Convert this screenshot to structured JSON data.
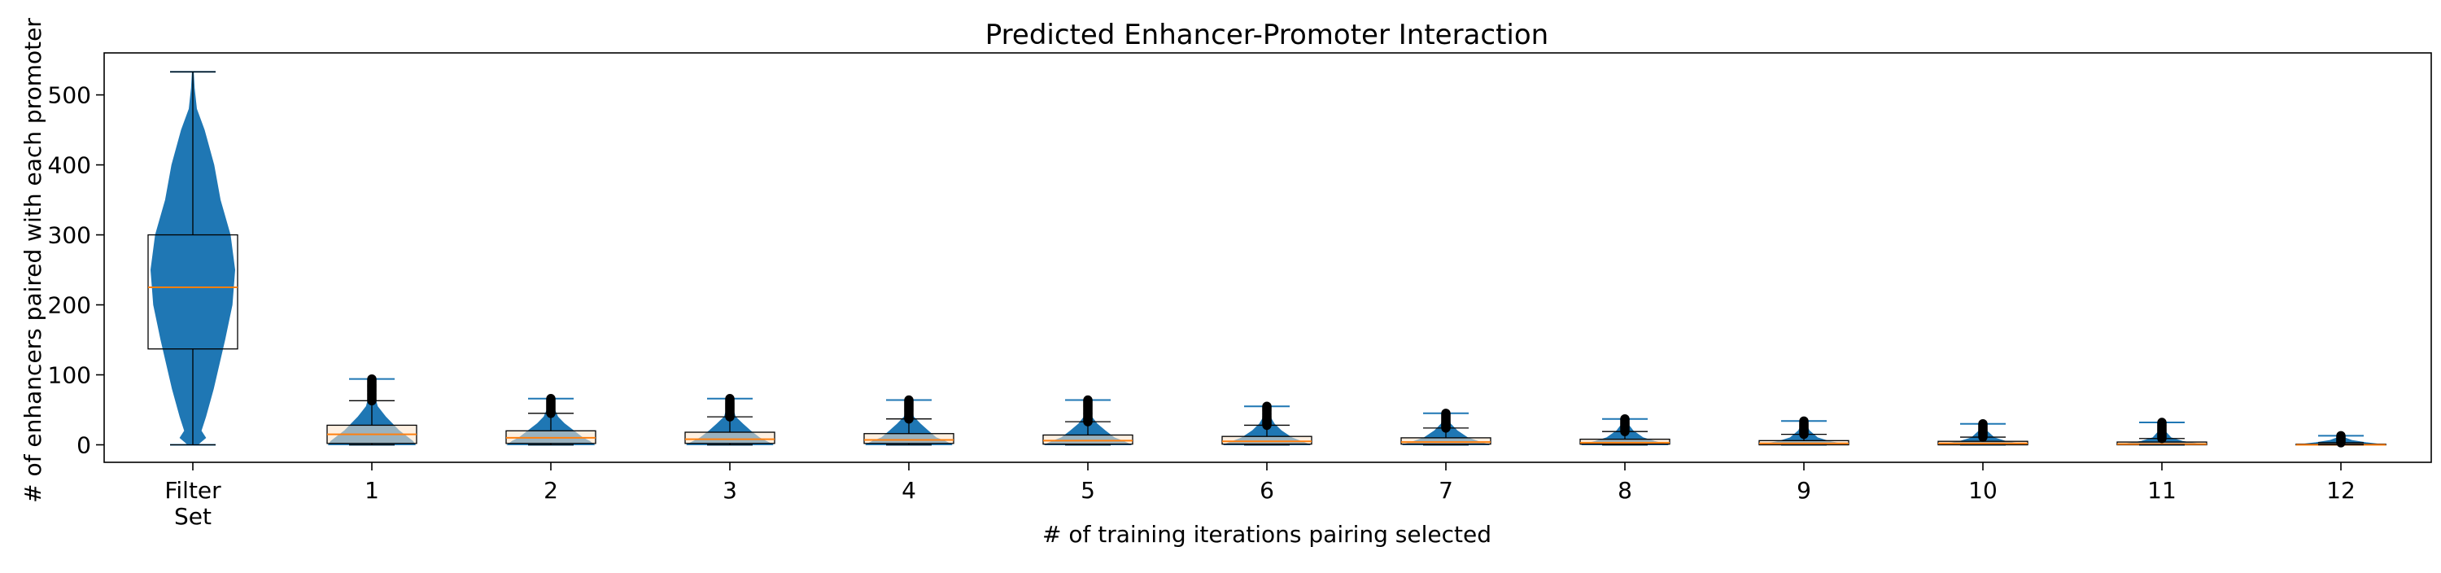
{
  "chart_data": {
    "type": "violin-box",
    "title": "Predicted Enhancer-Promoter Interaction",
    "xlabel": "# of training iterations pairing selected",
    "ylabel": "# of enhancers paired with each promoter",
    "ylim": [
      -25,
      560
    ],
    "yticks": [
      0,
      100,
      200,
      300,
      400,
      500
    ],
    "grid": false,
    "categories": [
      [
        "Filter",
        "Set"
      ],
      [
        "1"
      ],
      [
        "2"
      ],
      [
        "3"
      ],
      [
        "4"
      ],
      [
        "5"
      ],
      [
        "6"
      ],
      [
        "7"
      ],
      [
        "8"
      ],
      [
        "9"
      ],
      [
        "10"
      ],
      [
        "11"
      ],
      [
        "12"
      ]
    ],
    "groups": [
      {
        "min": 0,
        "q1": 137,
        "median": 225,
        "q3": 300,
        "whisker_low": 0,
        "whisker_high": 533,
        "max": 533,
        "density": [
          [
            0,
            0.1
          ],
          [
            10,
            0.28
          ],
          [
            20,
            0.18
          ],
          [
            40,
            0.28
          ],
          [
            80,
            0.45
          ],
          [
            150,
            0.7
          ],
          [
            200,
            0.86
          ],
          [
            250,
            0.92
          ],
          [
            300,
            0.82
          ],
          [
            350,
            0.6
          ],
          [
            400,
            0.46
          ],
          [
            450,
            0.25
          ],
          [
            480,
            0.08
          ],
          [
            510,
            0.03
          ],
          [
            533,
            0.01
          ]
        ]
      },
      {
        "min": 0,
        "q1": 2,
        "median": 15,
        "q3": 28,
        "whisker_low": 0,
        "whisker_high": 63,
        "max": 94,
        "density": [
          [
            0,
            0.95
          ],
          [
            5,
            0.9
          ],
          [
            10,
            0.8
          ],
          [
            20,
            0.6
          ],
          [
            30,
            0.45
          ],
          [
            40,
            0.3
          ],
          [
            55,
            0.12
          ],
          [
            70,
            0.06
          ],
          [
            85,
            0.03
          ],
          [
            94,
            0.02
          ]
        ]
      },
      {
        "min": 0,
        "q1": 2,
        "median": 10,
        "q3": 20,
        "whisker_low": 0,
        "whisker_high": 45,
        "max": 66,
        "density": [
          [
            0,
            0.95
          ],
          [
            5,
            0.85
          ],
          [
            10,
            0.7
          ],
          [
            20,
            0.5
          ],
          [
            30,
            0.3
          ],
          [
            40,
            0.15
          ],
          [
            55,
            0.05
          ],
          [
            66,
            0.02
          ]
        ]
      },
      {
        "min": 0,
        "q1": 2,
        "median": 8,
        "q3": 18,
        "whisker_low": 0,
        "whisker_high": 40,
        "max": 66,
        "density": [
          [
            0,
            0.95
          ],
          [
            5,
            0.8
          ],
          [
            10,
            0.65
          ],
          [
            20,
            0.45
          ],
          [
            30,
            0.28
          ],
          [
            40,
            0.12
          ],
          [
            55,
            0.05
          ],
          [
            66,
            0.02
          ]
        ]
      },
      {
        "min": 0,
        "q1": 2,
        "median": 7,
        "q3": 16,
        "whisker_low": 0,
        "whisker_high": 37,
        "max": 64,
        "density": [
          [
            0,
            0.95
          ],
          [
            5,
            0.8
          ],
          [
            10,
            0.6
          ],
          [
            20,
            0.42
          ],
          [
            30,
            0.25
          ],
          [
            40,
            0.1
          ],
          [
            55,
            0.04
          ],
          [
            64,
            0.02
          ]
        ]
      },
      {
        "min": 0,
        "q1": 1,
        "median": 6,
        "q3": 14,
        "whisker_low": 0,
        "whisker_high": 33,
        "max": 64,
        "density": [
          [
            0,
            0.95
          ],
          [
            5,
            0.78
          ],
          [
            10,
            0.58
          ],
          [
            20,
            0.38
          ],
          [
            30,
            0.2
          ],
          [
            40,
            0.08
          ],
          [
            55,
            0.04
          ],
          [
            64,
            0.02
          ]
        ]
      },
      {
        "min": 0,
        "q1": 1,
        "median": 5,
        "q3": 12,
        "whisker_low": 0,
        "whisker_high": 28,
        "max": 55,
        "density": [
          [
            0,
            0.95
          ],
          [
            5,
            0.75
          ],
          [
            10,
            0.55
          ],
          [
            20,
            0.32
          ],
          [
            30,
            0.16
          ],
          [
            40,
            0.07
          ],
          [
            55,
            0.02
          ]
        ]
      },
      {
        "min": 0,
        "q1": 1,
        "median": 4,
        "q3": 10,
        "whisker_low": 0,
        "whisker_high": 24,
        "max": 45,
        "density": [
          [
            0,
            0.95
          ],
          [
            5,
            0.7
          ],
          [
            10,
            0.48
          ],
          [
            20,
            0.25
          ],
          [
            30,
            0.1
          ],
          [
            45,
            0.02
          ]
        ]
      },
      {
        "min": 0,
        "q1": 1,
        "median": 3,
        "q3": 8,
        "whisker_low": 0,
        "whisker_high": 19,
        "max": 37,
        "density": [
          [
            0,
            0.95
          ],
          [
            5,
            0.65
          ],
          [
            10,
            0.4
          ],
          [
            20,
            0.18
          ],
          [
            30,
            0.06
          ],
          [
            37,
            0.02
          ]
        ]
      },
      {
        "min": 0,
        "q1": 0,
        "median": 2,
        "q3": 6,
        "whisker_low": 0,
        "whisker_high": 15,
        "max": 34,
        "density": [
          [
            0,
            0.95
          ],
          [
            5,
            0.55
          ],
          [
            10,
            0.3
          ],
          [
            20,
            0.12
          ],
          [
            30,
            0.04
          ],
          [
            34,
            0.02
          ]
        ]
      },
      {
        "min": 0,
        "q1": 0,
        "median": 2,
        "q3": 5,
        "whisker_low": 0,
        "whisker_high": 11,
        "max": 30,
        "density": [
          [
            0,
            0.95
          ],
          [
            5,
            0.5
          ],
          [
            10,
            0.25
          ],
          [
            20,
            0.08
          ],
          [
            30,
            0.02
          ]
        ]
      },
      {
        "min": 0,
        "q1": 0,
        "median": 1,
        "q3": 4,
        "whisker_low": 0,
        "whisker_high": 9,
        "max": 32,
        "density": [
          [
            0,
            0.95
          ],
          [
            5,
            0.45
          ],
          [
            10,
            0.2
          ],
          [
            20,
            0.06
          ],
          [
            32,
            0.02
          ]
        ]
      },
      {
        "min": 0,
        "q1": 0,
        "median": 0,
        "q3": 1,
        "whisker_low": 0,
        "whisker_high": 3,
        "max": 13,
        "density": [
          [
            0,
            0.95
          ],
          [
            3,
            0.55
          ],
          [
            6,
            0.25
          ],
          [
            10,
            0.08
          ],
          [
            13,
            0.02
          ]
        ]
      }
    ],
    "colors": {
      "violin": "#1f77b4",
      "box": "#000000",
      "median": "#ff7f0e",
      "box_fill": "#fde4c8"
    }
  }
}
